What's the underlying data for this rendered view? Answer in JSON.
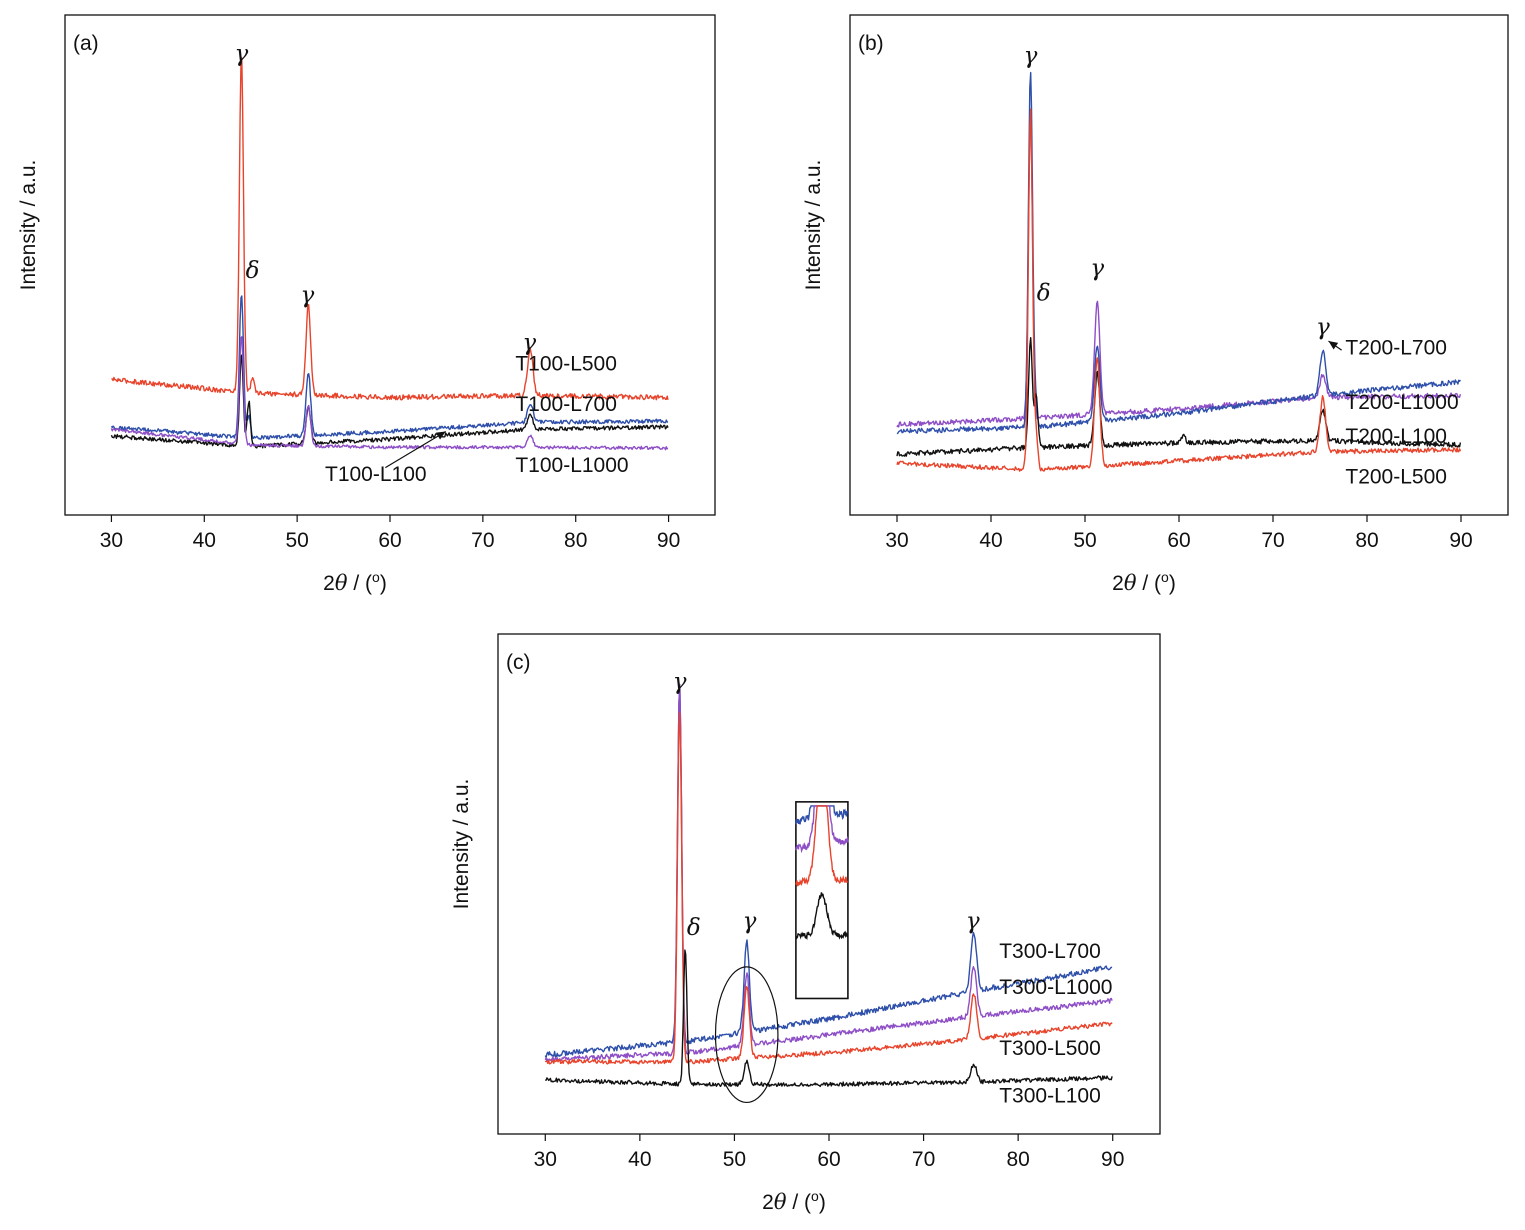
{
  "chart_data": [
    {
      "type": "line",
      "panel_label": "(a)",
      "xlabel": {
        "prefix": "2",
        "symbol": "θ",
        "suffix": " / (",
        "deg": "o",
        "close": ")"
      },
      "ylabel": "Intensity / a.u.",
      "xlim": [
        25,
        95
      ],
      "x_ticks": [
        "30",
        "40",
        "50",
        "60",
        "70",
        "80",
        "90"
      ],
      "x_tick_values": [
        30,
        40,
        50,
        60,
        70,
        80,
        90
      ],
      "y_range": [
        0,
        100
      ],
      "x_data_range": [
        30,
        90
      ],
      "peak_labels": [
        {
          "text": "γ",
          "x": 44.0,
          "y": 96.5
        },
        {
          "text": "δ",
          "x": 45.2,
          "y": 48.5
        },
        {
          "text": "γ",
          "x": 51.1,
          "y": 43.0
        },
        {
          "text": "γ",
          "x": 75.0,
          "y": 32.5
        }
      ],
      "series": [
        {
          "name": "T100-L500",
          "color": "#e8432b",
          "baseline": [
            [
              30,
              26
            ],
            [
              45,
              23
            ],
            [
              60,
              22
            ],
            [
              75,
              22.5
            ],
            [
              90,
              22
            ]
          ],
          "noise": 0.55,
          "peaks": [
            [
              44.0,
              75,
              0.22
            ],
            [
              51.2,
              20,
              0.25
            ],
            [
              75.1,
              10,
              0.3
            ],
            [
              45.2,
              3,
              0.2
            ]
          ]
        },
        {
          "name": "T100-L700",
          "color": "#2e4faa",
          "baseline": [
            [
              30,
              15.5
            ],
            [
              45,
              13
            ],
            [
              60,
              14.5
            ],
            [
              75,
              16.5
            ],
            [
              90,
              16.8
            ]
          ],
          "noise": 0.45,
          "peaks": [
            [
              44.0,
              32,
              0.22
            ],
            [
              51.2,
              14,
              0.25
            ],
            [
              75.1,
              4,
              0.3
            ],
            [
              44.8,
              5,
              0.18
            ]
          ]
        },
        {
          "name": "T100-L100",
          "color": "#111111",
          "baseline": [
            [
              30,
              13.5
            ],
            [
              45,
              11.2
            ],
            [
              60,
              12.8
            ],
            [
              75,
              15
            ],
            [
              90,
              15.5
            ]
          ],
          "noise": 0.45,
          "peaks": [
            [
              44.0,
              20,
              0.2
            ],
            [
              44.8,
              10,
              0.18
            ],
            [
              51.2,
              8,
              0.25
            ],
            [
              75.1,
              3,
              0.3
            ]
          ]
        },
        {
          "name": "T100-L1000",
          "color": "#8e4fc6",
          "baseline": [
            [
              30,
              15
            ],
            [
              45,
              11.5
            ],
            [
              60,
              11
            ],
            [
              75,
              11
            ],
            [
              90,
              10.8
            ]
          ],
          "noise": 0.35,
          "peaks": [
            [
              44.0,
              24,
              0.22
            ],
            [
              51.2,
              9,
              0.25
            ],
            [
              75.1,
              2.5,
              0.3
            ]
          ]
        }
      ],
      "legend_labels": [
        {
          "text": "T100-L500",
          "x": 73.5,
          "y": 28.0
        },
        {
          "text": "T100-L700",
          "x": 73.5,
          "y": 19.0
        },
        {
          "text": "T100-L100",
          "x": 53.0,
          "y": 3.5
        },
        {
          "text": "T100-L1000",
          "x": 73.5,
          "y": 5.5
        }
      ],
      "arrow": {
        "from": [
          59.5,
          6.5
        ],
        "to": [
          66.0,
          14.5
        ]
      }
    },
    {
      "type": "line",
      "panel_label": "(b)",
      "xlabel": {
        "prefix": "2",
        "symbol": "θ",
        "suffix": " / (",
        "deg": "o",
        "close": ")"
      },
      "ylabel": "Intensity / a.u.",
      "xlim": [
        25,
        95
      ],
      "x_ticks": [
        "30",
        "40",
        "50",
        "60",
        "70",
        "80",
        "90"
      ],
      "x_tick_values": [
        30,
        40,
        50,
        60,
        70,
        80,
        90
      ],
      "y_range": [
        0,
        100
      ],
      "x_data_range": [
        30,
        90
      ],
      "peak_labels": [
        {
          "text": "γ",
          "x": 44.2,
          "y": 96.0
        },
        {
          "text": "δ",
          "x": 45.6,
          "y": 43.5
        },
        {
          "text": "γ",
          "x": 51.3,
          "y": 49.0
        },
        {
          "text": "γ",
          "x": 75.3,
          "y": 36.0
        }
      ],
      "series": [
        {
          "name": "T200-L1000",
          "color": "#8e4fc6",
          "baseline": [
            [
              30,
              16
            ],
            [
              45,
              17.5
            ],
            [
              60,
              19.5
            ],
            [
              75,
              22
            ],
            [
              90,
              22.5
            ]
          ],
          "noise": 0.55,
          "peaks": [
            [
              44.2,
              67,
              0.22
            ],
            [
              51.3,
              25,
              0.28
            ],
            [
              75.3,
              5,
              0.3
            ]
          ]
        },
        {
          "name": "T200-L700",
          "color": "#2e4faa",
          "baseline": [
            [
              30,
              14.5
            ],
            [
              45,
              15.5
            ],
            [
              60,
              18.5
            ],
            [
              75,
              22.5
            ],
            [
              90,
              25.5
            ]
          ],
          "noise": 0.55,
          "peaks": [
            [
              44.2,
              79,
              0.22
            ],
            [
              51.3,
              17,
              0.28
            ],
            [
              75.3,
              10,
              0.3
            ],
            [
              44.7,
              6,
              0.18
            ]
          ]
        },
        {
          "name": "T200-L100",
          "color": "#111111",
          "baseline": [
            [
              30,
              9.5
            ],
            [
              45,
              11
            ],
            [
              60,
              12
            ],
            [
              75,
              12.5
            ],
            [
              90,
              11.5
            ]
          ],
          "noise": 0.55,
          "peaks": [
            [
              44.2,
              24,
              0.2
            ],
            [
              44.8,
              12,
              0.18
            ],
            [
              51.3,
              16,
              0.28
            ],
            [
              75.3,
              7,
              0.3
            ],
            [
              60.5,
              1.5,
              0.2
            ]
          ]
        },
        {
          "name": "T200-L500",
          "color": "#e8432b",
          "baseline": [
            [
              30,
              7.5
            ],
            [
              45,
              6
            ],
            [
              60,
              8
            ],
            [
              75,
              10
            ],
            [
              90,
              10.5
            ]
          ],
          "noise": 0.5,
          "peaks": [
            [
              44.2,
              80,
              0.22
            ],
            [
              51.3,
              24,
              0.28
            ],
            [
              75.3,
              12,
              0.3
            ],
            [
              44.8,
              8,
              0.18
            ]
          ]
        }
      ],
      "legend_labels": [
        {
          "text": "T200-L700",
          "x": 77.7,
          "y": 31.5
        },
        {
          "text": "T200-L1000",
          "x": 77.7,
          "y": 19.5
        },
        {
          "text": "T200-L100",
          "x": 77.7,
          "y": 12.0
        },
        {
          "text": "T200-L500",
          "x": 77.7,
          "y": 3.0
        }
      ],
      "arrow": {
        "from": [
          77.3,
          32.5
        ],
        "to": [
          75.9,
          34.5
        ]
      }
    },
    {
      "type": "line",
      "panel_label": "(c)",
      "xlabel": {
        "prefix": "2",
        "symbol": "θ",
        "suffix": " / (",
        "deg": "o",
        "close": ")"
      },
      "ylabel": "Intensity / a.u.",
      "xlim": [
        25,
        95
      ],
      "x_ticks": [
        "30",
        "40",
        "50",
        "60",
        "70",
        "80",
        "90"
      ],
      "x_tick_values": [
        30,
        40,
        50,
        60,
        70,
        80,
        90
      ],
      "y_range": [
        0,
        100
      ],
      "x_data_range": [
        30,
        90
      ],
      "peak_labels": [
        {
          "text": "γ",
          "x": 44.2,
          "y": 94.5
        },
        {
          "text": "δ",
          "x": 45.7,
          "y": 40.0
        },
        {
          "text": "γ",
          "x": 51.6,
          "y": 41.5
        },
        {
          "text": "γ",
          "x": 75.2,
          "y": 41.5
        }
      ],
      "series": [
        {
          "name": "T300-L700",
          "color": "#2e4faa",
          "baseline": [
            [
              30,
              13.5
            ],
            [
              45,
              16.5
            ],
            [
              60,
              21.5
            ],
            [
              75,
              27.5
            ],
            [
              90,
              33
            ]
          ],
          "noise": 0.6,
          "peaks": [
            [
              44.2,
              79,
              0.22
            ],
            [
              51.3,
              20,
              0.28
            ],
            [
              75.3,
              13,
              0.3
            ]
          ]
        },
        {
          "name": "T300-L1000",
          "color": "#8e4fc6",
          "baseline": [
            [
              30,
              12.5
            ],
            [
              45,
              14
            ],
            [
              60,
              18
            ],
            [
              75,
              22
            ],
            [
              90,
              25.5
            ]
          ],
          "noise": 0.55,
          "peaks": [
            [
              44.2,
              82,
              0.22
            ],
            [
              51.3,
              16,
              0.28
            ],
            [
              75.3,
              11,
              0.3
            ]
          ]
        },
        {
          "name": "T300-L500",
          "color": "#e8432b",
          "baseline": [
            [
              30,
              12
            ],
            [
              45,
              12
            ],
            [
              60,
              14
            ],
            [
              75,
              17
            ],
            [
              90,
              20.5
            ]
          ],
          "noise": 0.5,
          "peaks": [
            [
              44.2,
              78,
              0.22
            ],
            [
              51.3,
              16,
              0.28
            ],
            [
              75.3,
              10,
              0.3
            ]
          ]
        },
        {
          "name": "T300-L100",
          "color": "#111111",
          "baseline": [
            [
              30,
              8
            ],
            [
              45,
              7
            ],
            [
              60,
              7
            ],
            [
              75,
              7.5
            ],
            [
              90,
              8.5
            ]
          ],
          "noise": 0.45,
          "peaks": [
            [
              44.8,
              30,
              0.18
            ],
            [
              51.3,
              5,
              0.28
            ],
            [
              75.3,
              4,
              0.3
            ]
          ]
        }
      ],
      "legend_labels": [
        {
          "text": "T300-L700",
          "x": 78.0,
          "y": 35.0
        },
        {
          "text": "T300-L1000",
          "x": 78.0,
          "y": 27.0
        },
        {
          "text": "T300-L500",
          "x": 78.0,
          "y": 13.5
        },
        {
          "text": "T300-L100",
          "x": 78.0,
          "y": 3.0
        }
      ],
      "ellipse": {
        "cx": 51.3,
        "cy": 18.0,
        "rx": 3.3,
        "ry": 15.0
      },
      "inset": {
        "x0": 56.5,
        "x1": 62.0,
        "y0": 26.0,
        "y1": 69.5,
        "x_range": [
          49.8,
          52.8
        ],
        "series_offsets": [
          {
            "name": "T300-L700",
            "offset": 66,
            "scale": 1.0
          },
          {
            "name": "T300-L1000",
            "offset": 60,
            "scale": 1.0
          },
          {
            "name": "T300-L500",
            "offset": 52,
            "scale": 1.0
          },
          {
            "name": "T300-L100",
            "offset": 40,
            "scale": 1.0
          }
        ]
      }
    }
  ]
}
